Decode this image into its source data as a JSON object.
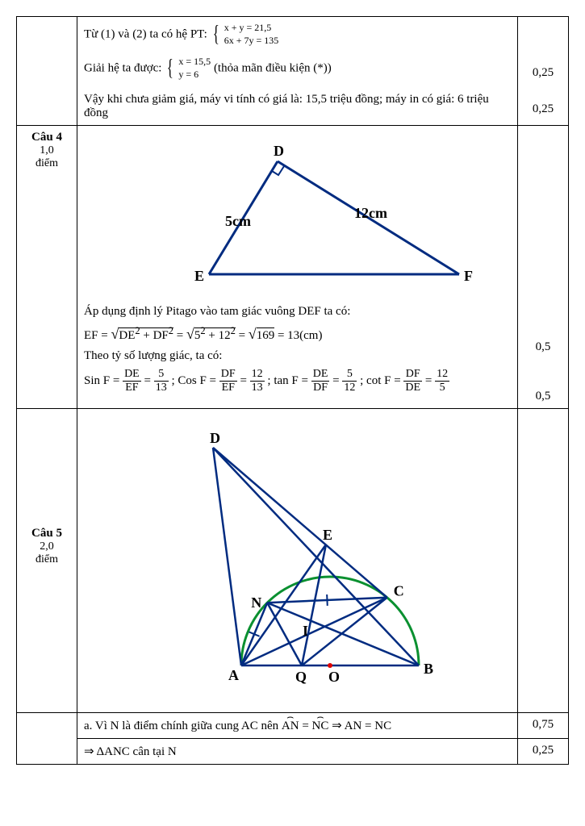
{
  "row1": {
    "line1_prefix": "Từ (1) và (2) ta có hệ PT: ",
    "sys1": {
      "eq1": "x + y = 21,5",
      "eq2": "6x + 7y = 135"
    },
    "line2_prefix": "Giải hệ ta được: ",
    "sys2": {
      "eq1": "x = 15,5",
      "eq2": "y = 6"
    },
    "line2_suffix": "  (thỏa mãn điều kiện (*))",
    "line3": "Vậy khi chưa giảm giá, máy vi tính có giá là: 15,5 triệu đồng; máy in có giá: 6 triệu đồng",
    "score1": "0,25",
    "score2": "0,25"
  },
  "row2": {
    "label_cau": "Câu 4",
    "label_pts": "1,0",
    "label_diem": "điểm",
    "triangle": {
      "D_label": "D",
      "E_label": "E",
      "F_label": "F",
      "DE_label": "5cm",
      "DF_label": "12cm",
      "stroke": "#002b80",
      "stroke_width": 3,
      "font_size": 18
    },
    "text1": "Áp dụng định lý Pitago vào tam giác vuông DEF ta có:",
    "ef_eq": "EF = √(DE² + DF²) = √(5² + 12²) = √169 = 13(cm)",
    "text2": "Theo tỷ số lượng giác, ta có:",
    "trig": {
      "sin_l": "Sin F =",
      "sin_n1": "DE",
      "sin_d1": "EF",
      "sin_n2": "5",
      "sin_d2": "13",
      "cos_l": "Cos F =",
      "cos_n1": "DF",
      "cos_d1": "EF",
      "cos_n2": "12",
      "cos_d2": "13",
      "tan_l": "tan F =",
      "tan_n1": "DE",
      "tan_d1": "DF",
      "tan_n2": "5",
      "tan_d2": "12",
      "cot_l": "cot F =",
      "cot_n1": "DF",
      "cot_d1": "DE",
      "cot_n2": "12",
      "cot_d2": "5"
    },
    "score1": "0,5",
    "score2": "0,5"
  },
  "row3": {
    "label_cau": "Câu 5",
    "label_pts": "2,0",
    "label_diem": "điểm",
    "diagram": {
      "stroke": "#002b80",
      "stroke_width": 2.5,
      "arc_color": "#0a9030",
      "labels": {
        "A": "A",
        "B": "B",
        "C": "C",
        "D": "D",
        "E": "E",
        "N": "N",
        "I": "I",
        "O": "O",
        "Q": "Q"
      },
      "font_size": 18
    },
    "line_a": "a. Vì N là điểm chính giữa cung AC nên ",
    "arc1": "AN",
    "eq": " = ",
    "arc2": "NC",
    "imp1": " ⇒ AN = NC",
    "line_b": "⇒ ΔANC cân tại N",
    "score_a": "0,75",
    "score_b": "0,25"
  }
}
